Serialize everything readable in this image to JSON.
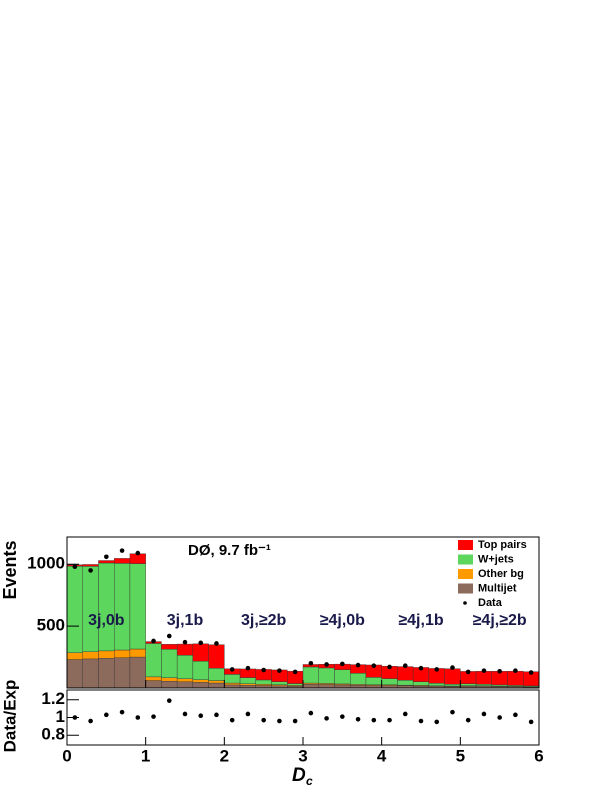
{
  "chart_data": [
    {
      "type": "histogram",
      "title": "DØ, 9.7 fb⁻¹",
      "y_label": "Events",
      "annotations": [
        "3j,0b",
        "3j,1b",
        "3j,≥2b",
        "≥4j,0b",
        "≥4j,1b",
        "≥4j,≥2b"
      ],
      "bins": [
        0,
        0.2,
        0.4,
        0.6,
        0.8,
        1,
        1.2,
        1.4,
        1.6,
        1.8,
        2,
        2.2,
        2.4,
        2.6,
        2.8,
        3,
        3.2,
        3.4,
        3.6,
        3.8,
        4,
        4.2,
        4.4,
        4.6,
        4.8,
        5,
        5.2,
        5.4,
        5.6,
        5.8,
        6
      ],
      "xlim": [
        0,
        6
      ],
      "ylim": [
        0,
        1220
      ],
      "yticks": [
        500,
        1000
      ],
      "series": [
        {
          "name": "Multijet",
          "color": "#8c6a5c",
          "values": [
            230,
            235,
            240,
            245,
            250,
            60,
            55,
            50,
            45,
            40,
            25,
            22,
            20,
            18,
            15,
            30,
            28,
            25,
            22,
            20,
            20,
            18,
            16,
            14,
            12,
            15,
            14,
            12,
            10,
            8
          ]
        },
        {
          "name": "Other bg",
          "color": "#ff9900",
          "values": [
            55,
            58,
            60,
            62,
            65,
            30,
            28,
            25,
            22,
            20,
            15,
            12,
            10,
            8,
            6,
            10,
            9,
            8,
            7,
            6,
            6,
            5,
            5,
            4,
            4,
            4,
            4,
            3,
            3,
            3
          ]
        },
        {
          "name": "W+jets",
          "color": "#5cd65c",
          "values": [
            700,
            690,
            710,
            700,
            690,
            270,
            230,
            190,
            150,
            100,
            70,
            50,
            35,
            25,
            15,
            130,
            125,
            115,
            90,
            60,
            50,
            40,
            30,
            20,
            15,
            15,
            12,
            10,
            8,
            6
          ]
        },
        {
          "name": "Top pairs",
          "color": "#ff0000",
          "values": [
            10,
            15,
            20,
            40,
            80,
            15,
            40,
            90,
            140,
            190,
            45,
            70,
            85,
            95,
            100,
            20,
            30,
            45,
            70,
            100,
            100,
            110,
            115,
            120,
            125,
            100,
            105,
            110,
            115,
            115
          ]
        }
      ],
      "data": {
        "name": "Data",
        "color": "#000000",
        "values": [
          980,
          950,
          1060,
          1110,
          1090,
          380,
          420,
          370,
          365,
          360,
          150,
          160,
          145,
          140,
          130,
          200,
          190,
          195,
          185,
          180,
          170,
          180,
          160,
          150,
          165,
          130,
          140,
          135,
          140,
          125
        ]
      }
    },
    {
      "type": "scatter",
      "y_label": "Data/Exp",
      "x_label": {
        "main": "D",
        "sub": "c"
      },
      "x": [
        0.1,
        0.3,
        0.5,
        0.7,
        0.9,
        1.1,
        1.3,
        1.5,
        1.7,
        1.9,
        2.1,
        2.3,
        2.5,
        2.7,
        2.9,
        3.1,
        3.3,
        3.5,
        3.7,
        3.9,
        4.1,
        4.3,
        4.5,
        4.7,
        4.9,
        5.1,
        5.3,
        5.5,
        5.7,
        5.9
      ],
      "values": [
        1.0,
        0.96,
        1.03,
        1.06,
        1.0,
        1.01,
        1.19,
        1.04,
        1.02,
        1.03,
        0.97,
        1.04,
        0.97,
        0.96,
        0.96,
        1.05,
        0.99,
        1.01,
        0.98,
        0.97,
        0.97,
        1.04,
        0.96,
        0.95,
        1.06,
        0.97,
        1.04,
        1.0,
        1.03,
        0.95
      ],
      "color": "#000000",
      "xlim": [
        0,
        6
      ],
      "xticks": [
        0,
        1,
        2,
        3,
        4,
        5,
        6
      ],
      "ylim": [
        0.69,
        1.31
      ],
      "yticks": [
        0.8,
        1,
        1.2
      ]
    }
  ]
}
